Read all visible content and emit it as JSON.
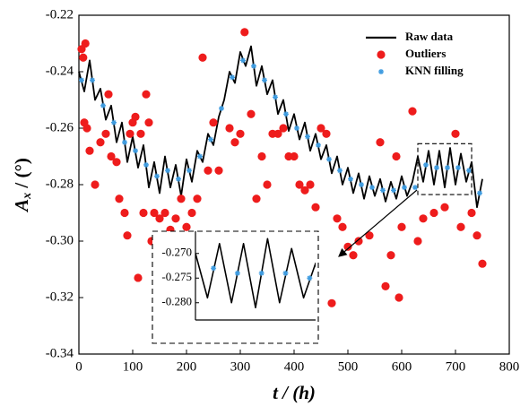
{
  "chart_data": {
    "type": "line",
    "x_label": "t / (h)",
    "y_label_main": "A",
    "y_label_sub": "x",
    "y_label_unit": " / (°)",
    "xlim": [
      0,
      800
    ],
    "xticks": [
      0,
      100,
      200,
      300,
      400,
      500,
      600,
      700,
      800
    ],
    "ylim": [
      -0.34,
      -0.22
    ],
    "yticks": [
      -0.34,
      -0.32,
      {
        "value": -0.3,
        "label": "-0.30"
      },
      -0.28,
      -0.26,
      -0.24,
      -0.22
    ],
    "legend": "top-right",
    "series": [
      {
        "name": "Raw data",
        "color": "#000000",
        "mode": "line",
        "x": [
          0,
          10,
          20,
          30,
          40,
          50,
          60,
          70,
          80,
          90,
          100,
          110,
          120,
          130,
          140,
          150,
          160,
          170,
          180,
          190,
          200,
          210,
          220,
          230,
          240,
          250,
          260,
          270,
          280,
          290,
          300,
          310,
          320,
          330,
          340,
          350,
          360,
          370,
          380,
          390,
          400,
          410,
          420,
          430,
          440,
          450,
          460,
          470,
          480,
          490,
          500,
          510,
          520,
          530,
          540,
          550,
          560,
          570,
          580,
          590,
          600,
          610,
          620,
          630,
          640,
          650,
          660,
          670,
          680,
          690,
          700,
          710,
          720,
          730,
          740,
          750
        ],
        "values": [
          -0.24,
          -0.247,
          -0.236,
          -0.25,
          -0.246,
          -0.257,
          -0.252,
          -0.265,
          -0.258,
          -0.272,
          -0.263,
          -0.274,
          -0.266,
          -0.281,
          -0.272,
          -0.283,
          -0.27,
          -0.281,
          -0.273,
          -0.284,
          -0.271,
          -0.279,
          -0.268,
          -0.272,
          -0.262,
          -0.266,
          -0.256,
          -0.25,
          -0.24,
          -0.244,
          -0.233,
          -0.238,
          -0.231,
          -0.245,
          -0.238,
          -0.248,
          -0.243,
          -0.255,
          -0.25,
          -0.261,
          -0.255,
          -0.264,
          -0.258,
          -0.268,
          -0.262,
          -0.271,
          -0.266,
          -0.276,
          -0.27,
          -0.28,
          -0.274,
          -0.283,
          -0.276,
          -0.285,
          -0.277,
          -0.284,
          -0.278,
          -0.286,
          -0.279,
          -0.285,
          -0.277,
          -0.284,
          -0.279,
          -0.27,
          -0.279,
          -0.268,
          -0.28,
          -0.268,
          -0.281,
          -0.267,
          -0.28,
          -0.269,
          -0.279,
          -0.272,
          -0.288,
          -0.278
        ]
      },
      {
        "name": "Outliers",
        "color": "#ee1c1c",
        "mode": "circles",
        "x": [
          5,
          8,
          10,
          15,
          12,
          20,
          30,
          40,
          50,
          55,
          60,
          70,
          75,
          85,
          90,
          95,
          100,
          105,
          110,
          115,
          120,
          125,
          130,
          135,
          140,
          150,
          160,
          170,
          180,
          190,
          200,
          210,
          220,
          230,
          240,
          250,
          260,
          280,
          290,
          300,
          308,
          320,
          330,
          340,
          350,
          360,
          370,
          380,
          390,
          400,
          410,
          420,
          430,
          440,
          450,
          460,
          470,
          480,
          490,
          500,
          510,
          520,
          540,
          560,
          570,
          580,
          590,
          595,
          600,
          620,
          630,
          640,
          660,
          680,
          700,
          710,
          730,
          740,
          750
        ],
        "values": [
          -0.232,
          -0.235,
          -0.258,
          -0.26,
          -0.23,
          -0.268,
          -0.28,
          -0.265,
          -0.262,
          -0.248,
          -0.27,
          -0.272,
          -0.285,
          -0.29,
          -0.298,
          -0.262,
          -0.258,
          -0.256,
          -0.313,
          -0.262,
          -0.29,
          -0.248,
          -0.258,
          -0.3,
          -0.29,
          -0.292,
          -0.29,
          -0.296,
          -0.292,
          -0.285,
          -0.295,
          -0.29,
          -0.285,
          -0.235,
          -0.275,
          -0.258,
          -0.275,
          -0.26,
          -0.265,
          -0.262,
          -0.226,
          -0.255,
          -0.285,
          -0.27,
          -0.28,
          -0.262,
          -0.262,
          -0.26,
          -0.27,
          -0.27,
          -0.28,
          -0.282,
          -0.28,
          -0.288,
          -0.26,
          -0.262,
          -0.322,
          -0.292,
          -0.295,
          -0.302,
          -0.305,
          -0.3,
          -0.298,
          -0.265,
          -0.316,
          -0.305,
          -0.27,
          -0.32,
          -0.295,
          -0.254,
          -0.3,
          -0.292,
          -0.29,
          -0.288,
          -0.262,
          -0.295,
          -0.29,
          -0.298,
          -0.308
        ]
      },
      {
        "name": "KNN filling",
        "color": "#3d9be0",
        "mode": "stars",
        "x": [
          5,
          25,
          45,
          65,
          85,
          105,
          125,
          145,
          165,
          185,
          205,
          225,
          245,
          265,
          285,
          305,
          325,
          345,
          365,
          385,
          405,
          425,
          445,
          465,
          485,
          505,
          525,
          545,
          565,
          585,
          605,
          625,
          645,
          665,
          685,
          705,
          725,
          745
        ],
        "values": [
          -0.243,
          -0.243,
          -0.252,
          -0.258,
          -0.265,
          -0.268,
          -0.273,
          -0.277,
          -0.275,
          -0.278,
          -0.275,
          -0.27,
          -0.264,
          -0.253,
          -0.242,
          -0.236,
          -0.238,
          -0.243,
          -0.249,
          -0.255,
          -0.26,
          -0.263,
          -0.266,
          -0.271,
          -0.275,
          -0.278,
          -0.28,
          -0.281,
          -0.282,
          -0.282,
          -0.281,
          -0.281,
          -0.273,
          -0.274,
          -0.274,
          -0.274,
          -0.275,
          -0.283
        ]
      }
    ],
    "inset": {
      "xlim": [
        630,
        730
      ],
      "ylim": [
        -0.2835,
        -0.2655
      ],
      "yticks": [
        {
          "value": -0.27,
          "label": "-0.270"
        },
        {
          "value": -0.275,
          "label": "-0.275"
        },
        {
          "value": -0.28,
          "label": "-0.280"
        }
      ]
    }
  }
}
